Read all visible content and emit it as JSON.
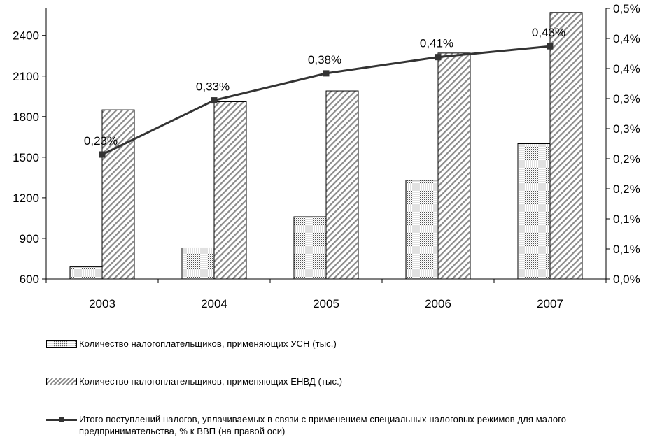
{
  "chart_data": {
    "type": "bar",
    "categories": [
      "2003",
      "2004",
      "2005",
      "2006",
      "2007"
    ],
    "left_axis": {
      "ylim": [
        600,
        2600
      ],
      "ticks": [
        "600",
        "900",
        "1200",
        "1500",
        "1800",
        "2100",
        "2400"
      ]
    },
    "right_axis": {
      "ylim": [
        0.0,
        0.5
      ],
      "ticks": [
        "0,0%",
        "0,1%",
        "0,1%",
        "0,2%",
        "0,2%",
        "0,3%",
        "0,3%",
        "0,4%",
        "0,4%",
        "0,5%"
      ]
    },
    "series": [
      {
        "name": "Количество налогоплательщиков,  применяющих  УСН (тыс.)",
        "type": "bar",
        "axis": "left",
        "pattern": "dots",
        "values": [
          690,
          830,
          1060,
          1330,
          1600
        ]
      },
      {
        "name": "Количество налогоплательщиков,  применяющих  ЕНВД (тыс.)",
        "type": "bar",
        "axis": "left",
        "pattern": "hatch",
        "values": [
          1850,
          1910,
          1990,
          2270,
          2570
        ]
      },
      {
        "name": "Итого поступлений налогов, уплачиваемых в связи с  применением  специальных налоговых режимов для малого предпринимательства,  % к ВВП (на правой оси)",
        "type": "line",
        "axis": "right",
        "values": [
          0.23,
          0.33,
          0.38,
          0.41,
          0.43
        ],
        "labels": [
          "0,23%",
          "0,33%",
          "0,38%",
          "0,41%",
          "0,43%"
        ]
      }
    ],
    "grid": false,
    "legend_position": "bottom",
    "colors": {
      "line": "#333333",
      "axis": "#000000",
      "bar_border": "#000000"
    }
  }
}
